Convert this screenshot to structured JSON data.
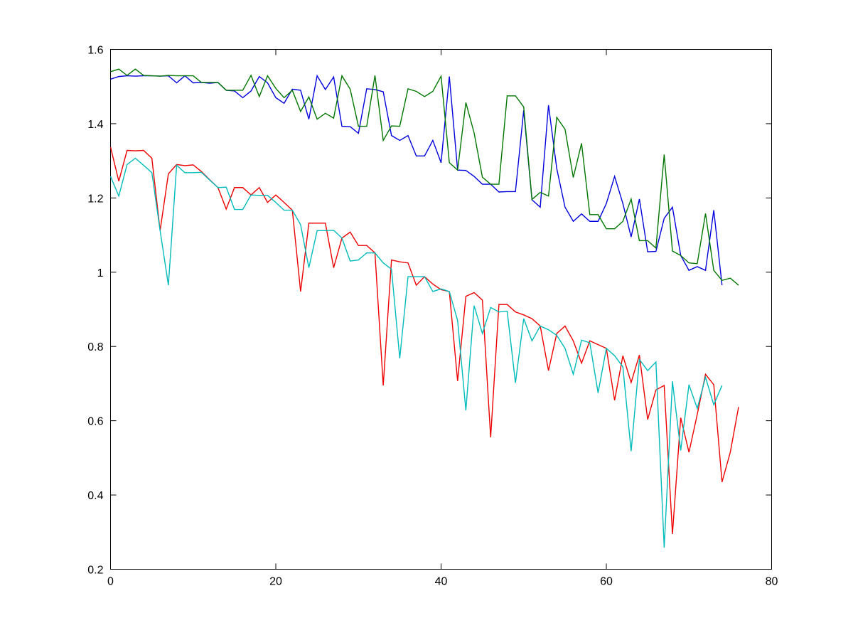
{
  "chart_data": {
    "type": "line",
    "title": "",
    "xlabel": "",
    "ylabel": "",
    "xlim": [
      0,
      80
    ],
    "ylim": [
      0.2,
      1.6
    ],
    "xticks": [
      0,
      20,
      40,
      60,
      80
    ],
    "yticks": [
      0.2,
      0.4,
      0.6,
      0.8,
      1.0,
      1.2,
      1.4,
      1.6
    ],
    "xtick_labels": [
      "0",
      "20",
      "40",
      "60",
      "80"
    ],
    "ytick_labels": [
      "0.2",
      "0.4",
      "0.6",
      "0.8",
      "1",
      "1.2",
      "1.4",
      "1.6"
    ],
    "grid": false,
    "legend": "none",
    "series": [
      {
        "color": "#0000dd",
        "values": [
          1.52,
          1.527,
          1.529,
          1.528,
          1.529,
          1.529,
          1.528,
          1.529,
          1.51,
          1.529,
          1.51,
          1.511,
          1.509,
          1.511,
          1.49,
          1.488,
          1.47,
          1.488,
          1.527,
          1.51,
          1.47,
          1.455,
          1.493,
          1.49,
          1.412,
          1.529,
          1.492,
          1.526,
          1.393,
          1.392,
          1.374,
          1.494,
          1.492,
          1.486,
          1.368,
          1.355,
          1.368,
          1.313,
          1.313,
          1.355,
          1.295,
          1.527,
          1.275,
          1.274,
          1.258,
          1.237,
          1.237,
          1.216,
          1.217,
          1.217,
          1.436,
          1.195,
          1.175,
          1.45,
          1.279,
          1.175,
          1.137,
          1.157,
          1.137,
          1.137,
          1.185,
          1.258,
          1.185,
          1.095,
          1.197,
          1.055,
          1.056,
          1.145,
          1.175,
          1.045,
          1.005,
          1.015,
          1.005,
          1.167,
          0.965
        ]
      },
      {
        "color": "#007700",
        "values": [
          1.54,
          1.547,
          1.53,
          1.547,
          1.53,
          1.529,
          1.528,
          1.53,
          1.529,
          1.529,
          1.529,
          1.511,
          1.511,
          1.511,
          1.49,
          1.49,
          1.49,
          1.53,
          1.473,
          1.529,
          1.495,
          1.47,
          1.49,
          1.433,
          1.472,
          1.412,
          1.428,
          1.415,
          1.529,
          1.493,
          1.393,
          1.393,
          1.53,
          1.355,
          1.394,
          1.393,
          1.494,
          1.487,
          1.473,
          1.487,
          1.528,
          1.295,
          1.275,
          1.457,
          1.375,
          1.256,
          1.237,
          1.237,
          1.475,
          1.475,
          1.445,
          1.196,
          1.215,
          1.205,
          1.417,
          1.385,
          1.255,
          1.347,
          1.155,
          1.155,
          1.117,
          1.117,
          1.137,
          1.197,
          1.085,
          1.085,
          1.065,
          1.317,
          1.057,
          1.045,
          1.025,
          1.023,
          1.158,
          1.005,
          0.978,
          0.984,
          0.965
        ]
      },
      {
        "color": "#ee0000",
        "values": [
          1.337,
          1.245,
          1.328,
          1.327,
          1.328,
          1.307,
          1.112,
          1.265,
          1.29,
          1.287,
          1.289,
          1.271,
          1.249,
          1.228,
          1.17,
          1.228,
          1.228,
          1.208,
          1.228,
          1.188,
          1.208,
          1.188,
          1.167,
          0.948,
          1.132,
          1.132,
          1.132,
          1.012,
          1.092,
          1.108,
          1.072,
          1.072,
          1.052,
          0.695,
          1.033,
          1.028,
          1.025,
          0.965,
          0.988,
          0.968,
          0.953,
          0.948,
          0.707,
          0.935,
          0.945,
          0.925,
          0.555,
          0.913,
          0.913,
          0.893,
          0.885,
          0.875,
          0.855,
          0.735,
          0.835,
          0.855,
          0.815,
          0.755,
          0.815,
          0.805,
          0.795,
          0.655,
          0.775,
          0.703,
          0.777,
          0.603,
          0.683,
          0.695,
          0.295,
          0.608,
          0.515,
          0.617,
          0.725,
          0.697,
          0.435,
          0.515,
          0.637
        ]
      },
      {
        "color": "#00bbbb",
        "values": [
          1.258,
          1.205,
          1.29,
          1.307,
          1.288,
          1.268,
          1.112,
          0.965,
          1.288,
          1.268,
          1.268,
          1.269,
          1.248,
          1.228,
          1.229,
          1.169,
          1.169,
          1.208,
          1.207,
          1.207,
          1.188,
          1.167,
          1.167,
          1.128,
          1.012,
          1.112,
          1.112,
          1.113,
          1.092,
          1.03,
          1.033,
          1.052,
          1.052,
          1.025,
          1.008,
          0.768,
          0.988,
          0.988,
          0.988,
          0.948,
          0.955,
          0.948,
          0.87,
          0.628,
          0.91,
          0.835,
          0.905,
          0.893,
          0.895,
          0.702,
          0.875,
          0.815,
          0.855,
          0.845,
          0.83,
          0.795,
          0.725,
          0.817,
          0.81,
          0.675,
          0.795,
          0.775,
          0.745,
          0.518,
          0.765,
          0.735,
          0.758,
          0.258,
          0.706,
          0.52,
          0.697,
          0.633,
          0.717,
          0.643,
          0.695
        ]
      }
    ]
  }
}
